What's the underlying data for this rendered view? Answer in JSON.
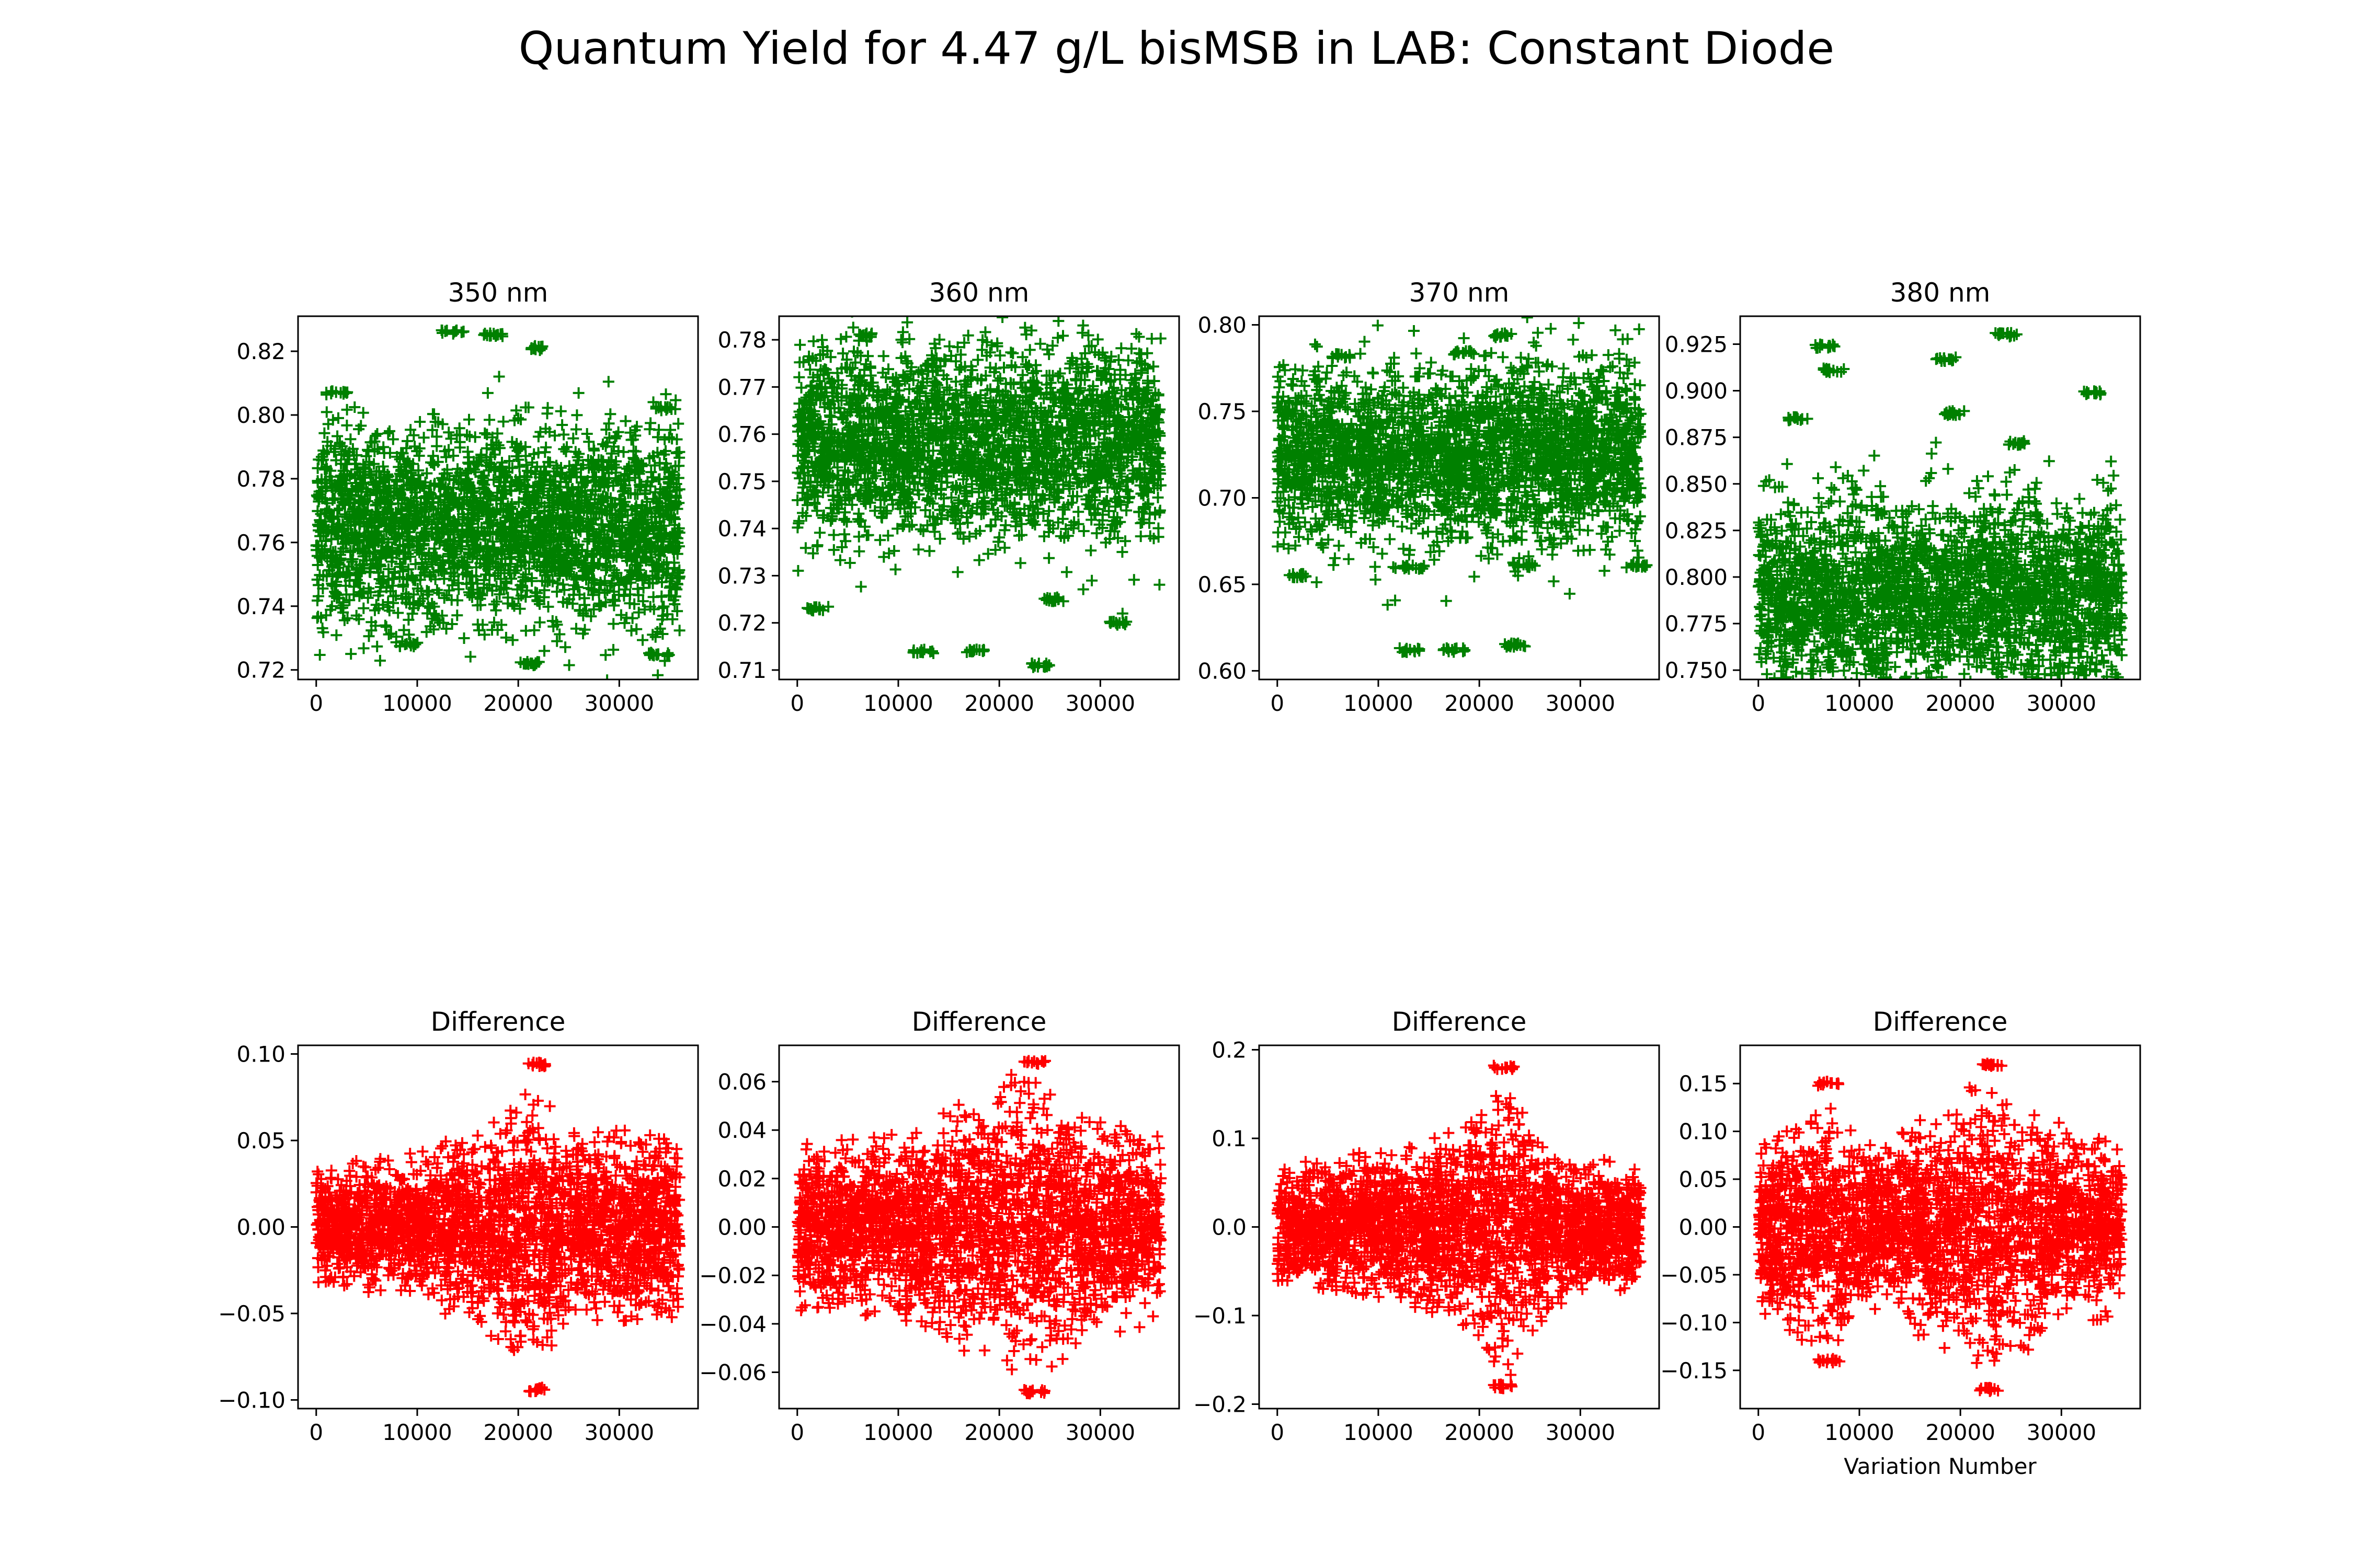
{
  "figure": {
    "suptitle": "Quantum Yield for 4.47 g/L bisMSB in LAB: Constant Diode"
  },
  "colors": {
    "top": "#008000",
    "bottom": "#ff0000"
  },
  "chart_data": [
    {
      "type": "scatter",
      "marker": "plus",
      "row": "top",
      "col": 0,
      "title": "350 nm",
      "xlabel": "",
      "ylabel": "",
      "xlim": [
        -1800,
        37800
      ],
      "ylim": [
        0.717,
        0.831
      ],
      "xticks": [
        0,
        10000,
        20000,
        30000
      ],
      "yticks": [
        0.72,
        0.74,
        0.76,
        0.78,
        0.8,
        0.82
      ],
      "ytick_labels": [
        "0.72",
        "0.74",
        "0.76",
        "0.78",
        "0.80",
        "0.82"
      ],
      "series": [
        {
          "color": "#008000",
          "n_points": 36000,
          "x_range": [
            0,
            36000
          ],
          "center": 0.765,
          "spread": 0.015,
          "clusters": [
            [
              13500,
              0.826
            ],
            [
              17500,
              0.825
            ],
            [
              22000,
              0.821
            ],
            [
              2000,
              0.807
            ],
            [
              34500,
              0.802
            ],
            [
              21000,
              0.722
            ],
            [
              34000,
              0.725
            ],
            [
              9000,
              0.728
            ]
          ]
        }
      ]
    },
    {
      "type": "scatter",
      "marker": "plus",
      "row": "top",
      "col": 1,
      "title": "360 nm",
      "xlabel": "",
      "ylabel": "",
      "xlim": [
        -1800,
        37800
      ],
      "ylim": [
        0.708,
        0.785
      ],
      "xticks": [
        0,
        10000,
        20000,
        30000
      ],
      "yticks": [
        0.71,
        0.72,
        0.73,
        0.74,
        0.75,
        0.76,
        0.77,
        0.78
      ],
      "ytick_labels": [
        "0.71",
        "0.72",
        "0.73",
        "0.74",
        "0.75",
        "0.76",
        "0.77",
        "0.78"
      ],
      "series": [
        {
          "color": "#008000",
          "n_points": 36000,
          "x_range": [
            0,
            36000
          ],
          "center": 0.758,
          "spread": 0.01,
          "clusters": [
            [
              6500,
              0.781
            ],
            [
              2000,
              0.723
            ],
            [
              12500,
              0.714
            ],
            [
              17500,
              0.714
            ],
            [
              24000,
              0.711
            ],
            [
              31500,
              0.72
            ],
            [
              25500,
              0.725
            ]
          ]
        }
      ]
    },
    {
      "type": "scatter",
      "marker": "plus",
      "row": "top",
      "col": 2,
      "title": "370 nm",
      "xlabel": "",
      "ylabel": "",
      "xlim": [
        -1800,
        37800
      ],
      "ylim": [
        0.595,
        0.805
      ],
      "xticks": [
        0,
        10000,
        20000,
        30000
      ],
      "yticks": [
        0.6,
        0.65,
        0.7,
        0.75,
        0.8
      ],
      "ytick_labels": [
        "0.60",
        "0.65",
        "0.70",
        "0.75",
        "0.80"
      ],
      "series": [
        {
          "color": "#008000",
          "n_points": 36000,
          "x_range": [
            0,
            36000
          ],
          "center": 0.725,
          "spread": 0.025,
          "clusters": [
            [
              13000,
              0.612
            ],
            [
              17500,
              0.612
            ],
            [
              23500,
              0.615
            ],
            [
              2000,
              0.655
            ],
            [
              13500,
              0.66
            ],
            [
              24500,
              0.661
            ],
            [
              35500,
              0.661
            ],
            [
              22500,
              0.794
            ],
            [
              6500,
              0.782
            ],
            [
              18500,
              0.784
            ]
          ]
        }
      ]
    },
    {
      "type": "scatter",
      "marker": "plus",
      "row": "top",
      "col": 3,
      "title": "380 nm",
      "xlabel": "",
      "ylabel": "",
      "xlim": [
        -1800,
        37800
      ],
      "ylim": [
        0.745,
        0.94
      ],
      "xticks": [
        0,
        10000,
        20000,
        30000
      ],
      "yticks": [
        0.75,
        0.775,
        0.8,
        0.825,
        0.85,
        0.875,
        0.9,
        0.925
      ],
      "ytick_labels": [
        "0.750",
        "0.775",
        "0.800",
        "0.825",
        "0.850",
        "0.875",
        "0.900",
        "0.925"
      ],
      "series": [
        {
          "color": "#008000",
          "n_points": 36000,
          "x_range": [
            0,
            36000
          ],
          "center": 0.79,
          "spread": 0.025,
          "clusters": [
            [
              24500,
              0.93
            ],
            [
              6500,
              0.924
            ],
            [
              18500,
              0.917
            ],
            [
              7500,
              0.911
            ],
            [
              33000,
              0.899
            ],
            [
              4000,
              0.885
            ],
            [
              19500,
              0.888
            ],
            [
              25500,
              0.872
            ]
          ]
        }
      ]
    },
    {
      "type": "scatter",
      "marker": "plus",
      "row": "bottom",
      "col": 0,
      "title": "Difference",
      "xlabel": "",
      "ylabel": "",
      "xlim": [
        -1800,
        37800
      ],
      "ylim": [
        -0.105,
        0.105
      ],
      "xticks": [
        0,
        10000,
        20000,
        30000
      ],
      "yticks": [
        -0.1,
        -0.05,
        0.0,
        0.05,
        0.1
      ],
      "ytick_labels": [
        "−0.10",
        "−0.05",
        "0.00",
        "0.05",
        "0.10"
      ],
      "series": [
        {
          "color": "#ff0000",
          "n_points": 36000,
          "x_range": [
            0,
            36000
          ],
          "center": 0,
          "spread": 0.02,
          "envelope": [
            [
              0,
              0.035
            ],
            [
              12000,
              0.045
            ],
            [
              14000,
              0.06
            ],
            [
              22000,
              0.08
            ],
            [
              26000,
              0.055
            ],
            [
              36000,
              0.06
            ]
          ],
          "clusters": [
            [
              22000,
              0.094
            ],
            [
              22000,
              -0.094
            ]
          ]
        }
      ]
    },
    {
      "type": "scatter",
      "marker": "plus",
      "row": "bottom",
      "col": 1,
      "title": "Difference",
      "xlabel": "",
      "ylabel": "",
      "xlim": [
        -1800,
        37800
      ],
      "ylim": [
        -0.075,
        0.075
      ],
      "xticks": [
        0,
        10000,
        20000,
        30000
      ],
      "yticks": [
        -0.06,
        -0.04,
        -0.02,
        0.0,
        0.02,
        0.04,
        0.06
      ],
      "ytick_labels": [
        "−0.06",
        "−0.04",
        "−0.02",
        "0.00",
        "0.02",
        "0.04",
        "0.06"
      ],
      "series": [
        {
          "color": "#ff0000",
          "n_points": 36000,
          "x_range": [
            0,
            36000
          ],
          "center": 0,
          "spread": 0.014,
          "envelope": [
            [
              0,
              0.035
            ],
            [
              12000,
              0.04
            ],
            [
              17000,
              0.055
            ],
            [
              23000,
              0.068
            ],
            [
              28000,
              0.048
            ],
            [
              36000,
              0.04
            ]
          ],
          "clusters": [
            [
              23500,
              0.068
            ],
            [
              23500,
              -0.068
            ]
          ]
        }
      ]
    },
    {
      "type": "scatter",
      "marker": "plus",
      "row": "bottom",
      "col": 2,
      "title": "Difference",
      "xlabel": "",
      "ylabel": "",
      "xlim": [
        -1800,
        37800
      ],
      "ylim": [
        -0.205,
        0.205
      ],
      "xticks": [
        0,
        10000,
        20000,
        30000
      ],
      "yticks": [
        -0.2,
        -0.1,
        0.0,
        0.1,
        0.2
      ],
      "ytick_labels": [
        "−0.2",
        "−0.1",
        "0.0",
        "0.1",
        "0.2"
      ],
      "series": [
        {
          "color": "#ff0000",
          "n_points": 36000,
          "x_range": [
            0,
            36000
          ],
          "center": 0,
          "spread": 0.03,
          "envelope": [
            [
              0,
              0.07
            ],
            [
              12000,
              0.09
            ],
            [
              18000,
              0.11
            ],
            [
              22500,
              0.18
            ],
            [
              27000,
              0.09
            ],
            [
              36000,
              0.07
            ]
          ],
          "clusters": [
            [
              22500,
              0.18
            ],
            [
              22500,
              -0.18
            ]
          ]
        }
      ]
    },
    {
      "type": "scatter",
      "marker": "plus",
      "row": "bottom",
      "col": 3,
      "title": "Difference",
      "xlabel": "Variation Number",
      "ylabel": "",
      "xlim": [
        -1800,
        37800
      ],
      "ylim": [
        -0.19,
        0.19
      ],
      "xticks": [
        0,
        10000,
        20000,
        30000
      ],
      "yticks": [
        -0.15,
        -0.1,
        -0.05,
        0.0,
        0.05,
        0.1,
        0.15
      ],
      "ytick_labels": [
        "−0.15",
        "−0.10",
        "−0.05",
        "0.00",
        "0.05",
        "0.10",
        "0.15"
      ],
      "series": [
        {
          "color": "#ff0000",
          "n_points": 36000,
          "x_range": [
            0,
            36000
          ],
          "center": 0,
          "spread": 0.03,
          "envelope": [
            [
              0,
              0.09
            ],
            [
              7000,
              0.14
            ],
            [
              12000,
              0.09
            ],
            [
              18000,
              0.13
            ],
            [
              23000,
              0.17
            ],
            [
              28000,
              0.12
            ],
            [
              36000,
              0.09
            ]
          ],
          "clusters": [
            [
              23000,
              0.17
            ],
            [
              23000,
              -0.17
            ],
            [
              7000,
              0.15
            ],
            [
              7000,
              -0.14
            ]
          ]
        }
      ]
    }
  ]
}
